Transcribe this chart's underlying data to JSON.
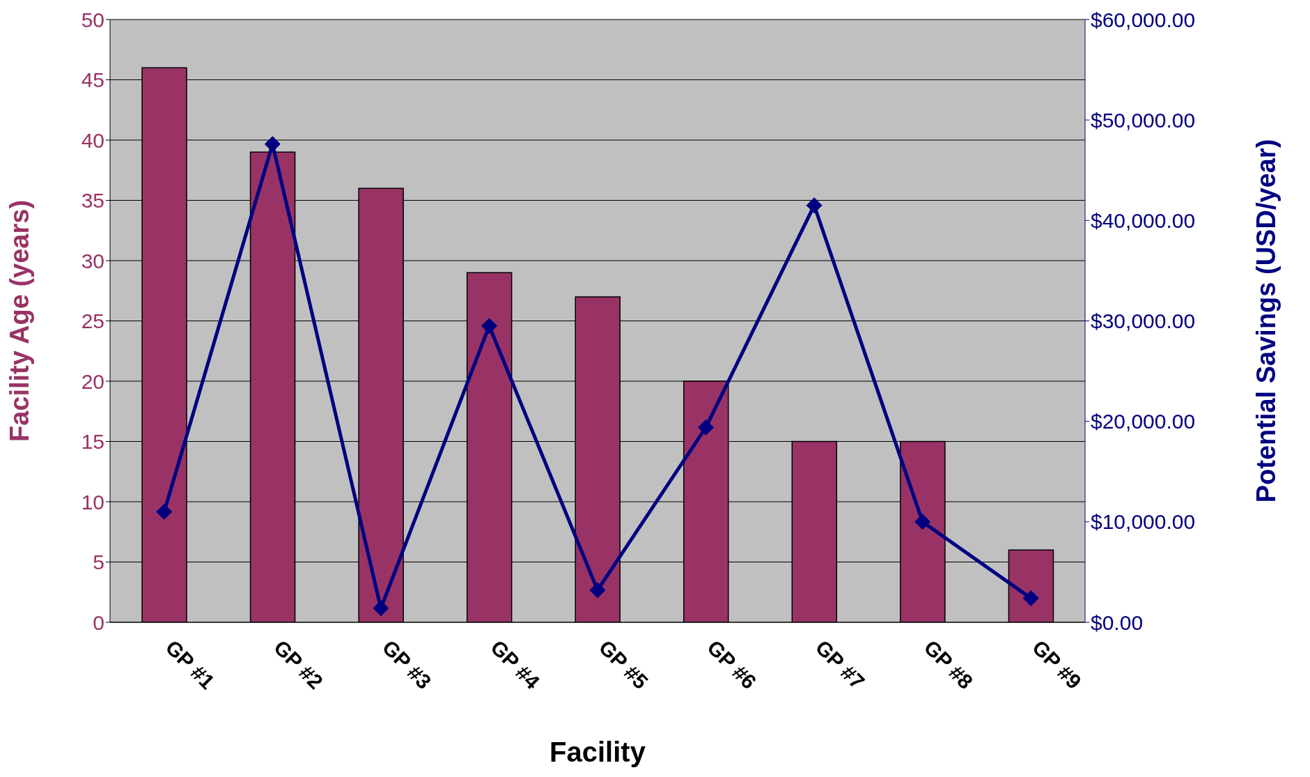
{
  "chart_data": {
    "type": "bar",
    "xlabel": "Facility",
    "ylabel": "Facility Age (years)",
    "y2label": "Potential Savings (USD/year)",
    "categories": [
      "GP #1",
      "GP #2",
      "GP #3",
      "GP #4",
      "GP #5",
      "GP #6",
      "GP #7",
      "GP #8",
      "GP #9"
    ],
    "series": [
      {
        "color": "#993366",
        "values": [
          46,
          39,
          36,
          29,
          27,
          20,
          15,
          15,
          6
        ]
      },
      {
        "type": "line",
        "axis": "y2",
        "color": "#000080",
        "marker": "diamond",
        "values": [
          11000,
          47600,
          1400,
          29500,
          3200,
          19400,
          41500,
          10000,
          2400
        ]
      }
    ],
    "ylim": [
      0,
      50
    ],
    "yticks": [
      0,
      5,
      10,
      15,
      20,
      25,
      30,
      35,
      40,
      45,
      50
    ],
    "y2lim": [
      0,
      60000
    ],
    "y2ticks": [
      {
        "value": 0,
        "label": "$0.00"
      },
      {
        "value": 10000,
        "label": "$10,000.00"
      },
      {
        "value": 20000,
        "label": "$20,000.00"
      },
      {
        "value": 30000,
        "label": "$30,000.00"
      },
      {
        "value": 40000,
        "label": "$40,000.00"
      },
      {
        "value": 50000,
        "label": "$50,000.00"
      },
      {
        "value": 60000,
        "label": "$60,000.00"
      }
    ],
    "grid": "y"
  }
}
